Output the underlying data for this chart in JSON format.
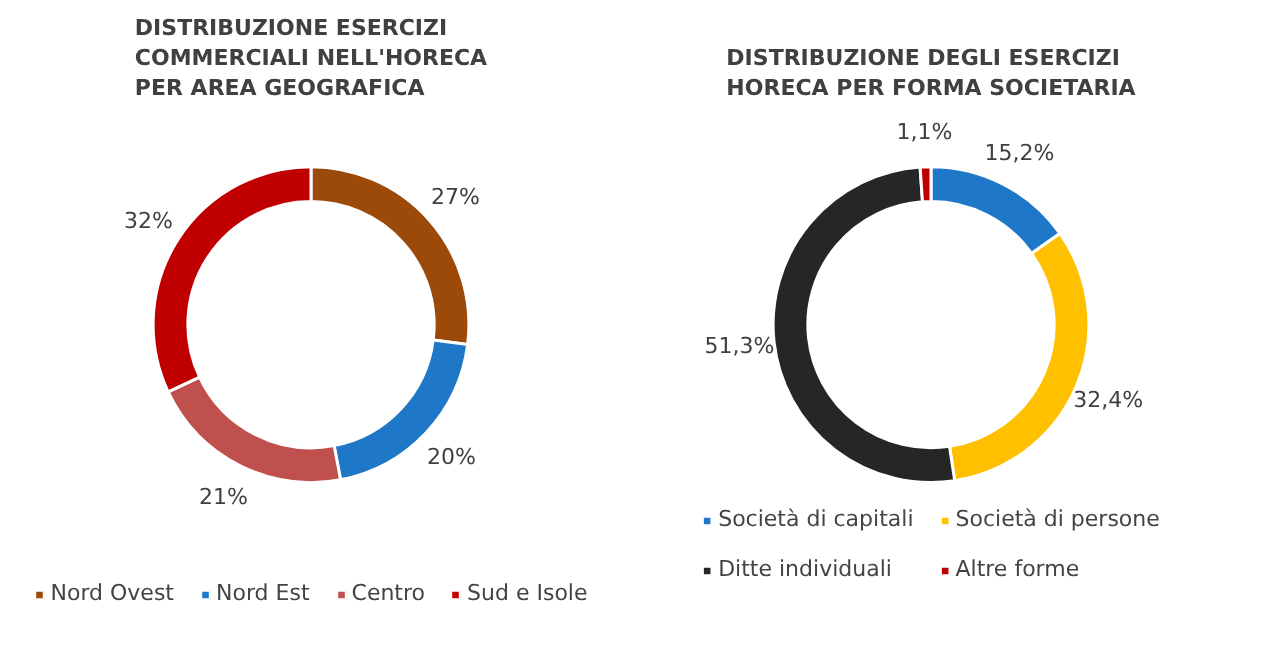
{
  "chart_data": [
    {
      "type": "donut",
      "title": "DISTRIBUZIONE ESERCIZI\nCOMMERCIALI NELL'HORECA\nPER AREA GEOGRAFICA",
      "categories": [
        "Nord Ovest",
        "Nord Est",
        "Centro",
        "Sud e Isole"
      ],
      "values": [
        27,
        20,
        21,
        32
      ],
      "colors": [
        "#9c4a0a",
        "#1f77c8",
        "#c0504d",
        "#c00000"
      ],
      "value_labels": [
        "27%",
        "20%",
        "21%",
        "32%"
      ],
      "legend": "bottom"
    },
    {
      "type": "donut",
      "title": "DISTRIBUZIONE DEGLI ESERCIZI\nHORECA PER FORMA SOCIETARIA",
      "categories": [
        "Società di capitali",
        "Società di persone",
        "Ditte individuali",
        "Altre forme"
      ],
      "values": [
        15.2,
        32.4,
        51.3,
        1.1
      ],
      "colors": [
        "#1f77c8",
        "#ffc000",
        "#262626",
        "#c00000"
      ],
      "value_labels": [
        "15,2%",
        "32,4%",
        "51,3%",
        "1,1%"
      ],
      "legend": "bottom"
    }
  ]
}
